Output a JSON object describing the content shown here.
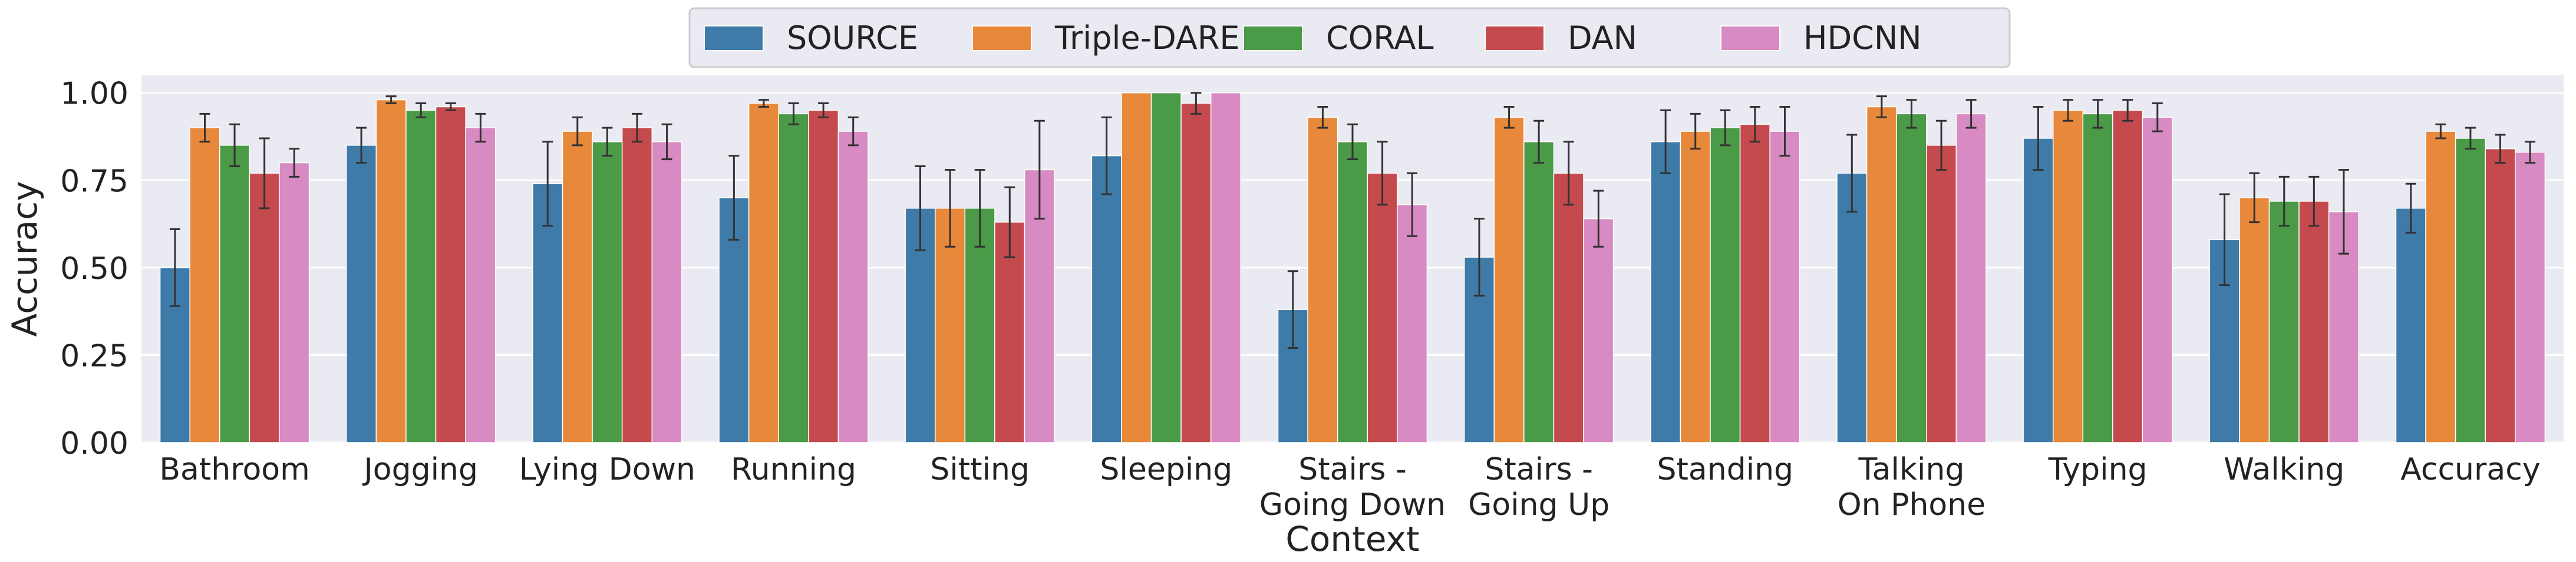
{
  "chart_data": {
    "type": "bar",
    "title": "",
    "xlabel": "Context",
    "ylabel": "Accuracy",
    "ylim": [
      0,
      1.05
    ],
    "yticks": [
      0.0,
      0.25,
      0.5,
      0.75,
      1.0
    ],
    "ytick_labels": [
      "0.00",
      "0.25",
      "0.50",
      "0.75",
      "1.00"
    ],
    "grid": true,
    "legend_position": "top-center",
    "categories": [
      "Bathroom",
      "Jogging",
      "Lying Down",
      "Running",
      "Sitting",
      "Sleeping",
      "Stairs -\nGoing Down",
      "Stairs -\nGoing Up",
      "Standing",
      "Talking\nOn Phone",
      "Typing",
      "Walking",
      "Accuracy"
    ],
    "series": [
      {
        "name": "SOURCE",
        "color": "#3f7ba8",
        "values": [
          0.5,
          0.85,
          0.74,
          0.7,
          0.67,
          0.82,
          0.38,
          0.53,
          0.86,
          0.77,
          0.87,
          0.58,
          0.67
        ],
        "errors": [
          0.11,
          0.05,
          0.12,
          0.12,
          0.12,
          0.11,
          0.11,
          0.11,
          0.09,
          0.11,
          0.09,
          0.13,
          0.07
        ]
      },
      {
        "name": "Triple-DARE",
        "color": "#e8883a",
        "values": [
          0.9,
          0.98,
          0.89,
          0.97,
          0.67,
          1.0,
          0.93,
          0.93,
          0.89,
          0.96,
          0.95,
          0.7,
          0.89
        ],
        "errors": [
          0.04,
          0.01,
          0.04,
          0.01,
          0.11,
          0.0,
          0.03,
          0.03,
          0.05,
          0.03,
          0.03,
          0.07,
          0.02
        ]
      },
      {
        "name": "CORAL",
        "color": "#4a9a47",
        "values": [
          0.85,
          0.95,
          0.86,
          0.94,
          0.67,
          1.0,
          0.86,
          0.86,
          0.9,
          0.94,
          0.94,
          0.69,
          0.87
        ],
        "errors": [
          0.06,
          0.02,
          0.04,
          0.03,
          0.11,
          0.0,
          0.05,
          0.06,
          0.05,
          0.04,
          0.04,
          0.07,
          0.03
        ]
      },
      {
        "name": "DAN",
        "color": "#c44a4d",
        "values": [
          0.77,
          0.96,
          0.9,
          0.95,
          0.63,
          0.97,
          0.77,
          0.77,
          0.91,
          0.85,
          0.95,
          0.69,
          0.84
        ],
        "errors": [
          0.1,
          0.01,
          0.04,
          0.02,
          0.1,
          0.03,
          0.09,
          0.09,
          0.05,
          0.07,
          0.03,
          0.07,
          0.04
        ]
      },
      {
        "name": "HDCNN",
        "color": "#d88ac2",
        "values": [
          0.8,
          0.9,
          0.86,
          0.89,
          0.78,
          1.0,
          0.68,
          0.64,
          0.89,
          0.94,
          0.93,
          0.66,
          0.83
        ],
        "errors": [
          0.04,
          0.04,
          0.05,
          0.04,
          0.14,
          0.0,
          0.09,
          0.08,
          0.07,
          0.04,
          0.04,
          0.12,
          0.03
        ]
      }
    ]
  }
}
